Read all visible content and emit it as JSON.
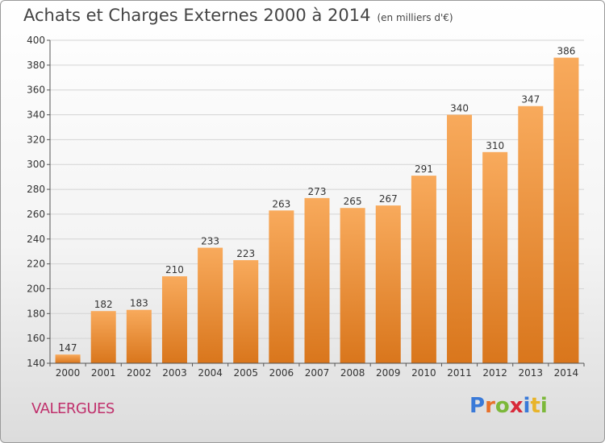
{
  "header": {
    "title": "Achats et Charges Externes 2000 à 2014",
    "subtitle": "(en milliers d'€)"
  },
  "footer": {
    "city": "VALERGUES",
    "brand_letters": [
      "P",
      "r",
      "o",
      "x",
      "i",
      "t",
      "i"
    ],
    "brand_colors": [
      "#3a7ad8",
      "#e8712a",
      "#7cb83a",
      "#d82a3a",
      "#3a7ad8",
      "#e8b42a",
      "#7cb83a"
    ]
  },
  "colors": {
    "bar_top": "#f8aa5c",
    "bar_bottom": "#d9761c",
    "grid": "#d4d4d4",
    "axis": "#555555",
    "city": "#c0306c"
  },
  "chart_data": {
    "type": "bar",
    "title": "Achats et Charges Externes 2000 à 2014",
    "subtitle": "(en milliers d'€)",
    "categories": [
      "2000",
      "2001",
      "2002",
      "2003",
      "2004",
      "2005",
      "2006",
      "2007",
      "2008",
      "2009",
      "2010",
      "2011",
      "2012",
      "2013",
      "2014"
    ],
    "values": [
      147,
      182,
      183,
      210,
      233,
      223,
      263,
      273,
      265,
      267,
      291,
      340,
      310,
      347,
      386
    ],
    "ylim": [
      140,
      400
    ],
    "yticks": [
      140,
      160,
      180,
      200,
      220,
      240,
      260,
      280,
      300,
      320,
      340,
      360,
      380,
      400
    ],
    "grid": true,
    "data_labels": true
  }
}
